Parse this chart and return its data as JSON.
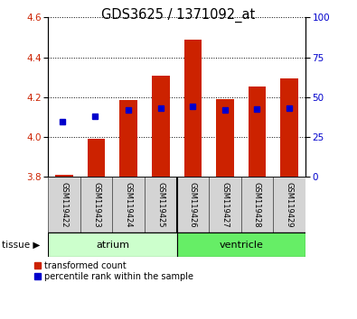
{
  "title": "GDS3625 / 1371092_at",
  "samples": [
    "GSM119422",
    "GSM119423",
    "GSM119424",
    "GSM119425",
    "GSM119426",
    "GSM119427",
    "GSM119428",
    "GSM119429"
  ],
  "bar_bottoms": [
    3.8,
    3.8,
    3.8,
    3.8,
    3.8,
    3.8,
    3.8,
    3.8
  ],
  "bar_tops": [
    3.81,
    3.99,
    4.185,
    4.31,
    4.49,
    4.19,
    4.255,
    4.295
  ],
  "blue_dot_y": [
    4.08,
    4.105,
    4.135,
    4.145,
    4.155,
    4.135,
    4.14,
    4.145
  ],
  "ylim": [
    3.8,
    4.6
  ],
  "yticks_left": [
    3.8,
    4.0,
    4.2,
    4.4,
    4.6
  ],
  "yticks_right": [
    0,
    25,
    50,
    75,
    100
  ],
  "bar_color": "#cc2200",
  "blue_color": "#0000cc",
  "bg_color": "#ffffff",
  "atrium_color": "#ccffcc",
  "ventricle_color": "#66ee66",
  "legend_items": [
    {
      "label": "transformed count",
      "color": "#cc2200"
    },
    {
      "label": "percentile rank within the sample",
      "color": "#0000cc"
    }
  ],
  "bar_width": 0.55,
  "title_fontsize": 10.5
}
